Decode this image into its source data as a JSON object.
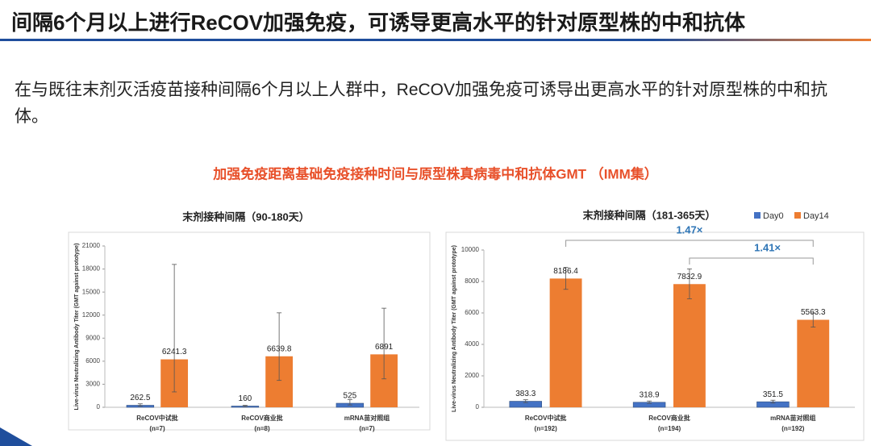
{
  "header": {
    "title": "间隔6个月以上进行ReCOV加强免疫，可诱导更高水平的针对原型株的中和抗体"
  },
  "body": {
    "text": "在与既往末剂灭活疫苗接种间隔6个月以上人群中，ReCOV加强免疫可诱导出更高水平的针对原型株的中和抗体。"
  },
  "section_title": "加强免疫距离基础免疫接种时间与原型株真病毒中和抗体GMT （IMM集）",
  "chart_data": [
    {
      "type": "bar",
      "title": "末剂接种间隔（90-180天）",
      "ylabel": "Live-virus Neutralizing Antibody Titer (GMT against prototype)",
      "categories": [
        "ReCOV中试批",
        "ReCOV商业批",
        "mRNA苗对照组"
      ],
      "sample_sizes": [
        "(n=7)",
        "(n=8)",
        "(n=7)"
      ],
      "series": [
        {
          "name": "Day0",
          "color": "#4472c4",
          "values": [
            262.5,
            160,
            525
          ],
          "error_low": [
            150,
            100,
            300
          ],
          "error_high": [
            450,
            260,
            1000
          ]
        },
        {
          "name": "Day14",
          "color": "#ed7d31",
          "values": [
            6241.3,
            6639.8,
            6891
          ],
          "error_low": [
            2000,
            3500,
            3700
          ],
          "error_high": [
            18600,
            12300,
            12900
          ]
        }
      ],
      "ylim": [
        0,
        21000
      ],
      "yticks": [
        0,
        3000,
        6000,
        9000,
        12000,
        15000,
        18000,
        21000
      ],
      "legend": false
    },
    {
      "type": "bar",
      "title": "末剂接种间隔（181-365天）",
      "ylabel": "Live-virus Neutralizing Antibody Titer (GMT against prototype)",
      "categories": [
        "ReCOV中试批",
        "ReCOV商业批",
        "mRNA苗对照组"
      ],
      "sample_sizes": [
        "(n=192)",
        "(n=194)",
        "(n=192)"
      ],
      "series": [
        {
          "name": "Day0",
          "color": "#4472c4",
          "values": [
            383.3,
            318.9,
            351.5
          ],
          "error_low": [
            300,
            250,
            270
          ],
          "error_high": [
            480,
            400,
            450
          ]
        },
        {
          "name": "Day14",
          "color": "#ed7d31",
          "values": [
            8186.4,
            7832.9,
            5563.3
          ],
          "error_low": [
            7500,
            6900,
            5100
          ],
          "error_high": [
            8900,
            8800,
            6000
          ]
        }
      ],
      "ylim": [
        0,
        10000
      ],
      "yticks": [
        0,
        2000,
        4000,
        6000,
        8000,
        10000
      ],
      "legend": true,
      "annotations": [
        "1.47×",
        "1.41×"
      ]
    }
  ]
}
